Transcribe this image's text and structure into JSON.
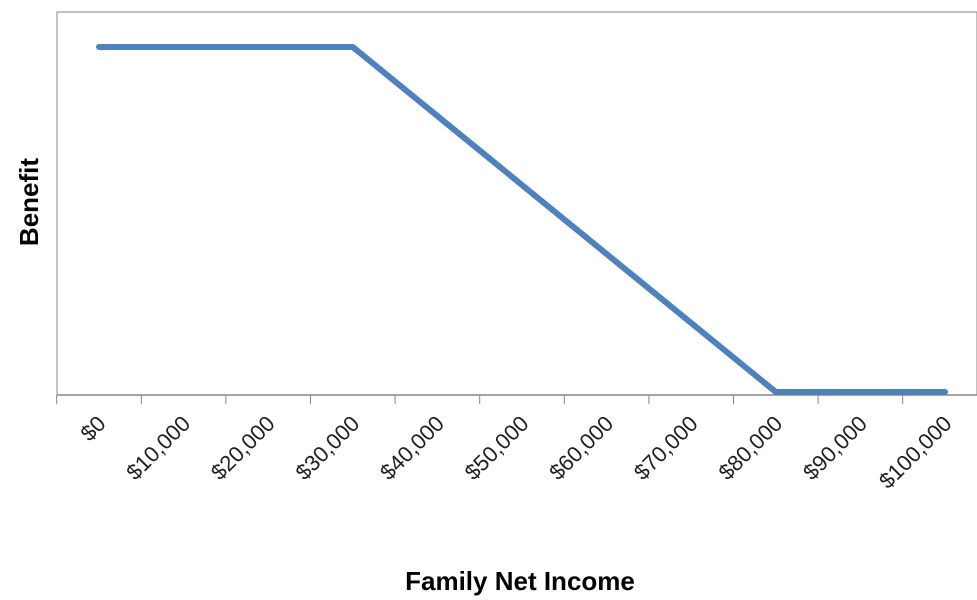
{
  "chart_data": {
    "type": "line",
    "title": "",
    "xlabel": "Family Net Income",
    "ylabel": "Benefit",
    "x_tick_labels": [
      "$0",
      "$10,000",
      "$20,000",
      "$30,000",
      "$40,000",
      "$50,000",
      "$60,000",
      "$70,000",
      "$80,000",
      "$90,000",
      "$100,000"
    ],
    "y_tick_labels": [],
    "x": [
      0,
      30000,
      80000,
      100000
    ],
    "series": [
      {
        "values": [
          1,
          1,
          0,
          0
        ],
        "color": "#4f81bd"
      }
    ],
    "xlim": [
      0,
      100000
    ],
    "ylim": [
      0,
      1
    ],
    "grid": false,
    "legend": "none"
  }
}
